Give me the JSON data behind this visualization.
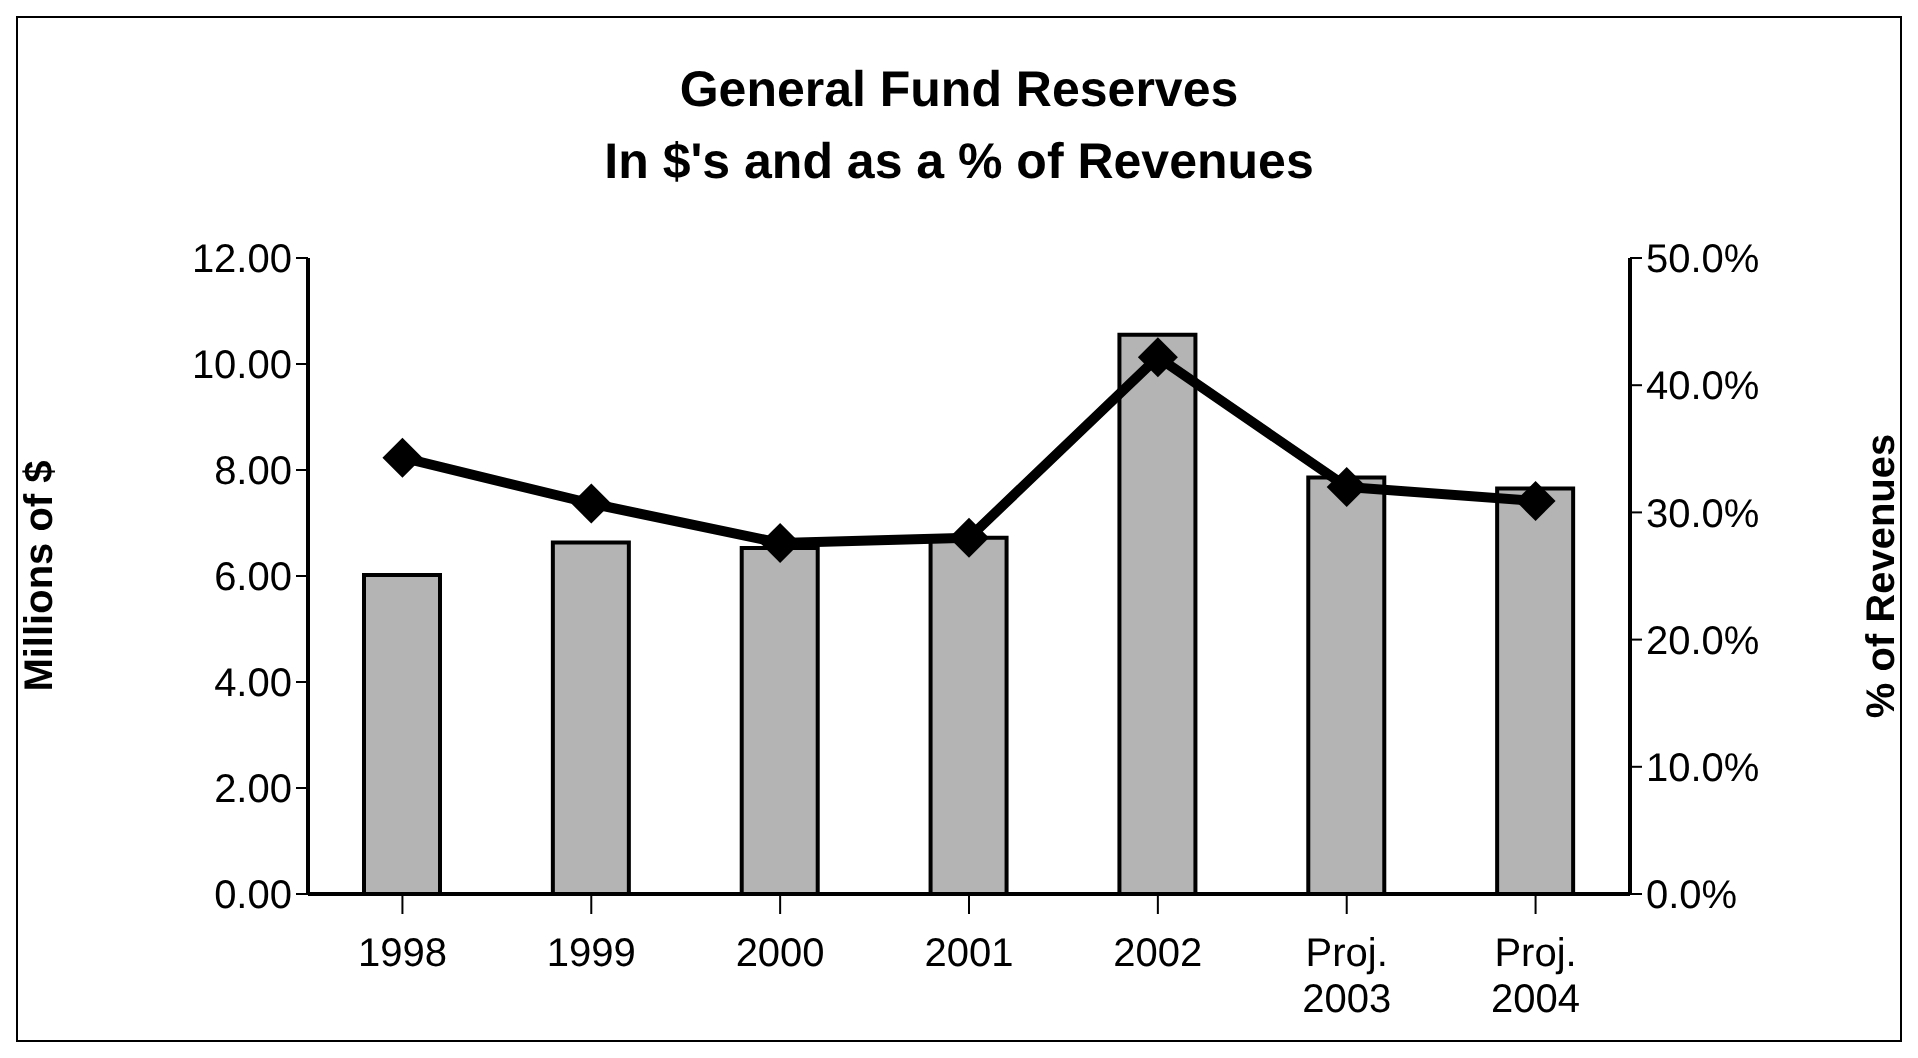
{
  "chart_data": {
    "type": "bar",
    "title": "General Fund Reserves\nIn $'s and as a % of Revenues",
    "ylabel": "Millions of $",
    "y2label": "% of Revenues",
    "categories": [
      "1998",
      "1999",
      "2000",
      "2001",
      "2002",
      "Proj. 2003",
      "Proj. 2004"
    ],
    "series": [
      {
        "color": "#b4b4b4",
        "values": [
          6.02,
          6.63,
          6.53,
          6.72,
          10.55,
          7.86,
          7.65
        ]
      },
      {
        "type": "line",
        "axis": "y2",
        "color": "#000000",
        "marker": "diamond",
        "values": [
          34.3,
          30.7,
          27.6,
          28.0,
          42.2,
          32.0,
          30.9
        ]
      }
    ],
    "ylim": [
      0,
      12
    ],
    "yticks": [
      {
        "value": 0,
        "label": "0.00"
      },
      {
        "value": 2,
        "label": "2.00"
      },
      {
        "value": 4,
        "label": "4.00"
      },
      {
        "value": 6,
        "label": "6.00"
      },
      {
        "value": 8,
        "label": "8.00"
      },
      {
        "value": 10,
        "label": "10.00"
      },
      {
        "value": 12,
        "label": "12.00"
      }
    ],
    "y2lim": [
      0,
      50
    ],
    "y2ticks": [
      {
        "value": 0,
        "label": "0.0%"
      },
      {
        "value": 10,
        "label": "10.0%"
      },
      {
        "value": 20,
        "label": "20.0%"
      },
      {
        "value": 30,
        "label": "30.0%"
      },
      {
        "value": 40,
        "label": "40.0%"
      },
      {
        "value": 50,
        "label": "50.0%"
      }
    ],
    "grid": false,
    "legend": false
  }
}
